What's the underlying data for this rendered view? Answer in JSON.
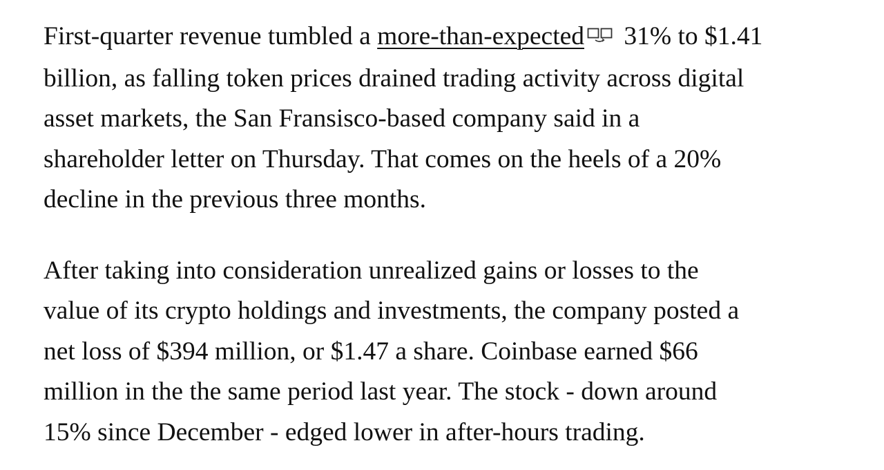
{
  "article": {
    "paragraphs": [
      {
        "lines": [
          {
            "before": "First-quarter revenue tumbled a ",
            "link_text": "more-than-expected",
            "link_icon": "compare-icon",
            "after": " 31% to $1.41"
          },
          {
            "text": "billion, as falling token prices drained trading activity across digital"
          },
          {
            "text": "asset markets, the San Fransisco-based company said in a"
          },
          {
            "text": "shareholder letter on Thursday. That comes on the heels of a 20%"
          },
          {
            "text": "decline in the previous three months."
          }
        ]
      },
      {
        "lines": [
          {
            "text": "After taking into consideration unrealized gains or losses to the"
          },
          {
            "text": "value of its crypto holdings and investments, the company posted a"
          },
          {
            "text": "net loss of $394 million, or $1.47 a share. Coinbase earned $66"
          },
          {
            "text": "million in the the same period last year. The stock - down around"
          },
          {
            "text": "15% since December - edged lower in after-hours trading."
          }
        ]
      }
    ]
  },
  "colors": {
    "text": "#111111",
    "background": "#ffffff"
  }
}
